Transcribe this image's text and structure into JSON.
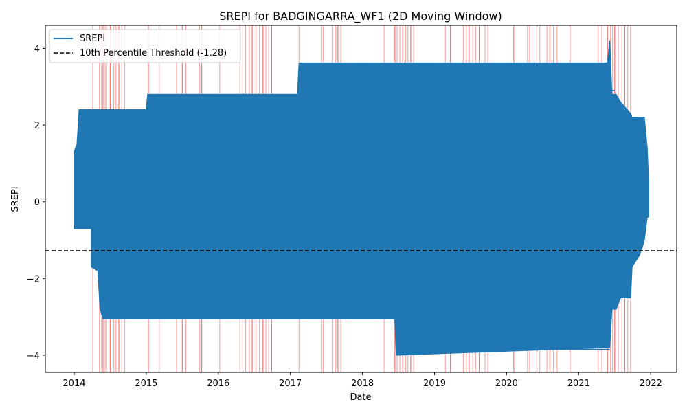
{
  "chart_data": {
    "type": "line",
    "title": "SREPI for BADGINGARRA_WF1 (2D Moving Window)",
    "xlabel": "Date",
    "ylabel": "SREPI",
    "x_ticks": [
      "2014",
      "2015",
      "2016",
      "2017",
      "2018",
      "2019",
      "2020",
      "2021",
      "2022"
    ],
    "y_ticks": [
      "−4",
      "−2",
      "0",
      "2",
      "4"
    ],
    "xlim": [
      2013.6,
      2022.36
    ],
    "ylim": [
      -4.45,
      4.6
    ],
    "grid": false,
    "legend": {
      "position": "top-left",
      "entries": [
        "SREPI",
        "10th Percentile Threshold (-1.28)"
      ]
    },
    "colors": {
      "series": "#1f77b4",
      "threshold": "#000000",
      "drought_bands": "#ff0000"
    },
    "threshold": {
      "name": "10th Percentile Threshold (-1.28)",
      "value": -1.28
    },
    "series": [
      {
        "name": "SREPI",
        "envelope": [
          {
            "x": 2014.0,
            "min": -0.7,
            "max": 1.3
          },
          {
            "x": 2014.04,
            "min": -0.7,
            "max": 1.5
          },
          {
            "x": 2014.07,
            "min": -0.7,
            "max": 2.4
          },
          {
            "x": 2014.24,
            "min": -0.7,
            "max": 2.4
          },
          {
            "x": 2014.24,
            "min": -1.7,
            "max": 2.4
          },
          {
            "x": 2014.33,
            "min": -1.8,
            "max": 2.4
          },
          {
            "x": 2014.36,
            "min": -2.8,
            "max": 2.4
          },
          {
            "x": 2014.4,
            "min": -3.05,
            "max": 2.4
          },
          {
            "x": 2015.0,
            "min": -3.05,
            "max": 2.4
          },
          {
            "x": 2015.02,
            "min": -3.05,
            "max": 2.8
          },
          {
            "x": 2017.1,
            "min": -3.05,
            "max": 2.8
          },
          {
            "x": 2017.12,
            "min": -3.05,
            "max": 3.6
          },
          {
            "x": 2018.45,
            "min": -3.05,
            "max": 3.6
          },
          {
            "x": 2018.47,
            "min": -4.0,
            "max": 3.6
          },
          {
            "x": 2021.4,
            "min": -3.8,
            "max": 3.6
          },
          {
            "x": 2021.43,
            "min": -3.8,
            "max": 4.2
          },
          {
            "x": 2021.46,
            "min": -2.8,
            "max": 2.8
          },
          {
            "x": 2021.52,
            "min": -2.8,
            "max": 2.8
          },
          {
            "x": 2021.58,
            "min": -2.5,
            "max": 2.6
          },
          {
            "x": 2021.72,
            "min": -2.5,
            "max": 2.3
          },
          {
            "x": 2021.74,
            "min": -1.7,
            "max": 2.2
          },
          {
            "x": 2021.84,
            "min": -1.4,
            "max": 2.2
          },
          {
            "x": 2021.88,
            "min": -1.2,
            "max": 2.2
          },
          {
            "x": 2021.91,
            "min": -1.0,
            "max": 2.2
          },
          {
            "x": 2021.95,
            "min": -0.4,
            "max": 1.4
          },
          {
            "x": 2021.97,
            "min": -0.4,
            "max": 0.5
          }
        ],
        "horizontal_segments": [
          {
            "y": 3.62,
            "x0": 2017.12,
            "x1": 2021.43
          },
          {
            "y": 3.37,
            "x0": 2017.12,
            "x1": 2021.43
          },
          {
            "y": 3.3,
            "x0": 2017.12,
            "x1": 2021.43
          },
          {
            "y": 3.25,
            "x0": 2017.12,
            "x1": 2021.43
          },
          {
            "y": 3.1,
            "x0": 2018.05,
            "x1": 2021.05
          },
          {
            "y": 2.9,
            "x0": 2017.12,
            "x1": 2021.5
          },
          {
            "y": -2.6,
            "x0": 2019.4,
            "x1": 2021.43
          },
          {
            "y": -2.75,
            "x0": 2019.4,
            "x1": 2021.43
          },
          {
            "y": -3.1,
            "x0": 2018.47,
            "x1": 2021.43
          },
          {
            "y": -3.2,
            "x0": 2018.47,
            "x1": 2021.43
          },
          {
            "y": -3.28,
            "x0": 2018.47,
            "x1": 2021.43
          },
          {
            "y": -3.35,
            "x0": 2018.47,
            "x1": 2021.43
          },
          {
            "y": -3.45,
            "x0": 2020.5,
            "x1": 2021.43
          },
          {
            "y": -3.65,
            "x0": 2018.47,
            "x1": 2021.43
          },
          {
            "y": -3.75,
            "x0": 2018.47,
            "x1": 2021.43
          },
          {
            "y": -3.85,
            "x0": 2018.47,
            "x1": 2021.43
          }
        ]
      }
    ],
    "drought_periods": [
      2014.26,
      2014.35,
      2014.38,
      2014.4,
      2014.43,
      2014.45,
      2014.5,
      2014.55,
      2014.58,
      2014.62,
      2014.66,
      2014.7,
      2015.03,
      2015.18,
      2015.42,
      2015.5,
      2015.55,
      2015.74,
      2015.77,
      2016.02,
      2016.3,
      2016.34,
      2016.38,
      2016.43,
      2016.47,
      2016.52,
      2016.57,
      2016.62,
      2016.66,
      2016.7,
      2016.74,
      2017.12,
      2017.43,
      2017.46,
      2017.58,
      2017.63,
      2017.66,
      2017.7,
      2018.3,
      2018.45,
      2018.48,
      2018.52,
      2018.56,
      2018.6,
      2018.63,
      2018.67,
      2018.71,
      2019.15,
      2019.22,
      2019.4,
      2019.44,
      2019.48,
      2019.53,
      2019.57,
      2019.62,
      2019.7,
      2019.74,
      2020.1,
      2020.29,
      2020.32,
      2020.42,
      2020.46,
      2020.56,
      2020.6,
      2020.65,
      2020.7,
      2020.88,
      2021.27,
      2021.32,
      2021.4,
      2021.44,
      2021.47,
      2021.5,
      2021.55,
      2021.6,
      2021.64,
      2021.68,
      2021.72
    ]
  }
}
